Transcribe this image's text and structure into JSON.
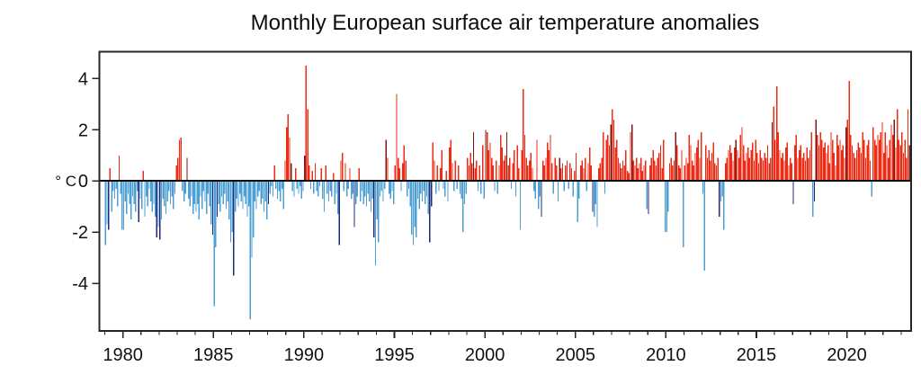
{
  "page": {
    "background": "#ffffff"
  },
  "chart_data": {
    "type": "bar",
    "title": "Monthly European surface air temperature anomalies",
    "ylabel": "° C",
    "xlabel": "",
    "grid": false,
    "legend": "none",
    "start_year": 1979,
    "start_month": 1,
    "end_year": 2023,
    "end_month": 6,
    "x_major_ticks": [
      1980,
      1985,
      1990,
      1995,
      2000,
      2005,
      2010,
      2015,
      2020
    ],
    "x_major_tick_labels": [
      "1980",
      "1985",
      "1990",
      "1995",
      "2000",
      "2005",
      "2010",
      "2015",
      "2020"
    ],
    "x_minor_tick_every_years": 1,
    "x_range_years": [
      1978.7,
      2023.55
    ],
    "y_ticks": [
      4,
      2,
      0,
      -2,
      -4
    ],
    "y_tick_labels": [
      "4",
      "2",
      "0",
      "-2",
      "-4"
    ],
    "ylim": [
      -5.86,
      5.05
    ],
    "colors": {
      "positive": "#ee2b14",
      "positive_dark": "#7c1a12",
      "negative": "#4e9fd4",
      "negative_dark": "#1f2a7b",
      "axis": "#262626",
      "zero_line": "#0a0a0a",
      "text": "#111111"
    },
    "values": [
      -2.5,
      -1.7,
      -1.9,
      0.5,
      -1.2,
      -0.4,
      -0.7,
      -0.3,
      -1.0,
      1.0,
      -0.5,
      -1.9,
      -1.9,
      -0.8,
      -1.3,
      -0.5,
      -0.9,
      -1.5,
      -0.6,
      -0.9,
      -1.2,
      -0.4,
      -1.6,
      -0.7,
      -1.1,
      0.4,
      -1.4,
      -0.6,
      -1.0,
      -0.3,
      -0.8,
      -1.2,
      -0.9,
      -1.4,
      -2.2,
      -1.8,
      -2.3,
      -1.5,
      -0.7,
      -1.0,
      -1.3,
      -0.8,
      -0.4,
      -0.9,
      -0.6,
      -1.1,
      -0.5,
      0.6,
      0.9,
      1.6,
      1.7,
      -0.4,
      -0.8,
      -0.5,
      0.9,
      -0.7,
      -1.0,
      -0.6,
      -1.3,
      -0.9,
      -1.2,
      -0.9,
      -1.5,
      -0.6,
      -1.1,
      -0.4,
      -0.8,
      -1.3,
      -0.5,
      -1.0,
      -1.7,
      -2.1,
      -4.9,
      -2.6,
      -1.4,
      -0.9,
      -1.2,
      -0.6,
      -0.9,
      -0.5,
      -1.1,
      -0.8,
      -1.5,
      -2.4,
      -2.0,
      -3.7,
      -1.2,
      -0.7,
      -1.0,
      -0.5,
      -0.8,
      -1.1,
      -0.6,
      -0.9,
      -1.4,
      -1.0,
      -5.4,
      -3.0,
      -2.2,
      -0.8,
      -1.1,
      -0.6,
      -0.4,
      -0.9,
      -0.7,
      -1.2,
      -0.8,
      -1.5,
      -0.9,
      -0.5,
      -0.2,
      -0.6,
      0.6,
      -0.3,
      -0.7,
      -0.4,
      -0.8,
      -0.3,
      -1.1,
      0.8,
      2.1,
      2.6,
      1.7,
      0.7,
      -0.4,
      -0.6,
      0.5,
      -0.3,
      -0.5,
      -0.2,
      -0.7,
      -0.4,
      1.0,
      4.5,
      2.8,
      0.6,
      -0.3,
      0.4,
      -0.5,
      0.7,
      -0.4,
      -0.6,
      -0.2,
      0.5,
      -0.7,
      -1.2,
      0.6,
      -0.5,
      -0.8,
      -0.4,
      -0.6,
      0.3,
      -0.9,
      -0.5,
      -1.3,
      -2.5,
      0.8,
      1.1,
      -0.4,
      0.7,
      -0.6,
      -0.3,
      0.5,
      -0.7,
      -0.5,
      -1.8,
      -0.9,
      -0.6,
      0.5,
      -0.8,
      -0.4,
      -0.9,
      -0.6,
      -1.0,
      -0.5,
      -0.8,
      -1.2,
      -0.7,
      -2.2,
      -3.3,
      -1.5,
      -2.4,
      -0.6,
      -0.4,
      -0.8,
      -0.3,
      1.6,
      0.9,
      -0.5,
      -0.7,
      -0.4,
      -0.9,
      0.6,
      3.4,
      0.9,
      0.5,
      -0.4,
      0.7,
      1.4,
      0.8,
      -0.6,
      -0.3,
      -1.0,
      -2.1,
      -2.5,
      -1.8,
      -2.2,
      -0.7,
      -1.1,
      -0.5,
      -0.8,
      -0.4,
      -0.9,
      -0.6,
      -1.3,
      -2.4,
      -1.0,
      1.5,
      0.8,
      -0.5,
      0.6,
      -0.4,
      0.5,
      1.2,
      -0.3,
      -0.6,
      0.4,
      -0.8,
      1.3,
      1.6,
      0.7,
      -0.4,
      0.8,
      -0.3,
      0.6,
      -0.5,
      -0.7,
      -2.0,
      -0.9,
      -0.5,
      0.9,
      0.6,
      1.1,
      0.7,
      1.9,
      0.5,
      0.8,
      -0.4,
      0.6,
      -0.5,
      1.4,
      -0.7,
      2.0,
      1.9,
      1.2,
      1.5,
      0.9,
      0.6,
      -0.4,
      0.8,
      -0.5,
      0.6,
      1.8,
      1.3,
      0.8,
      1.0,
      1.9,
      0.6,
      0.9,
      -0.3,
      0.7,
      1.2,
      -0.6,
      1.4,
      0.5,
      -1.9,
      1.2,
      3.6,
      1.8,
      0.9,
      0.6,
      0.8,
      1.1,
      0.5,
      -0.4,
      -0.7,
      1.6,
      -1.1,
      -0.6,
      -1.4,
      0.8,
      0.6,
      0.9,
      1.5,
      1.2,
      1.8,
      0.7,
      -0.5,
      0.9,
      0.6,
      -0.8,
      0.9,
      0.5,
      0.7,
      -0.4,
      0.6,
      0.8,
      -0.3,
      0.7,
      0.5,
      -0.6,
      0.4,
      1.1,
      -1.6,
      -0.7,
      0.6,
      0.8,
      0.5,
      0.9,
      -0.4,
      0.7,
      1.3,
      0.6,
      -1.2,
      -1.4,
      -0.9,
      -1.8,
      0.5,
      0.7,
      0.9,
      1.9,
      -0.5,
      1.6,
      1.8,
      1.4,
      2.2,
      2.8,
      2.4,
      1.3,
      1.6,
      0.9,
      0.7,
      0.5,
      0.8,
      0.6,
      1.2,
      0.4,
      0.3,
      1.9,
      2.2,
      0.8,
      0.6,
      0.9,
      0.5,
      0.7,
      0.9,
      0.4,
      0.6,
      0.8,
      -1.1,
      -1.3,
      0.6,
      0.9,
      1.2,
      0.8,
      0.6,
      0.9,
      1.1,
      1.4,
      0.5,
      1.6,
      -2.0,
      -2.0,
      -1.2,
      0.7,
      0.9,
      0.6,
      0.8,
      1.9,
      1.4,
      0.6,
      0.5,
      1.2,
      -2.6,
      0.6,
      0.9,
      0.7,
      1.8,
      1.4,
      0.8,
      0.6,
      1.1,
      1.3,
      1.6,
      0.9,
      1.9,
      -0.5,
      -3.5,
      1.4,
      0.9,
      1.2,
      0.8,
      1.1,
      1.5,
      0.7,
      0.6,
      0.9,
      -1.4,
      -0.8,
      -0.6,
      -1.9,
      0.7,
      0.9,
      1.2,
      1.4,
      1.1,
      0.8,
      1.3,
      1.6,
      1.2,
      0.9,
      1.8,
      2.1,
      1.4,
      0.8,
      1.1,
      1.3,
      0.9,
      1.2,
      1.5,
      0.8,
      1.6,
      1.1,
      0.7,
      1.2,
      0.9,
      0.8,
      1.1,
      0.9,
      1.4,
      0.7,
      0.9,
      2.3,
      2.9,
      1.6,
      3.7,
      1.9,
      1.2,
      0.9,
      1.1,
      0.8,
      1.3,
      1.5,
      0.6,
      0.9,
      0.7,
      -0.9,
      1.4,
      1.8,
      0.9,
      1.2,
      1.4,
      0.9,
      1.1,
      0.8,
      1.3,
      0.9,
      1.2,
      1.9,
      -1.4,
      -0.8,
      2.4,
      1.8,
      1.4,
      1.9,
      1.6,
      1.3,
      1.5,
      1.1,
      1.4,
      0.7,
      1.9,
      1.6,
      1.1,
      0.6,
      1.8,
      1.4,
      1.6,
      1.2,
      1.4,
      0.9,
      2.1,
      2.4,
      3.9,
      1.8,
      1.4,
      1.1,
      0.9,
      1.2,
      1.5,
      1.3,
      1.1,
      1.9,
      1.6,
      0.9,
      1.4,
      1.6,
      0.8,
      -0.6,
      2.1,
      1.6,
      1.4,
      1.8,
      1.6,
      1.9,
      2.3,
      1.1,
      1.9,
      1.4,
      0.9,
      1.6,
      2.2,
      1.8,
      2.4,
      1.3,
      2.8,
      1.6,
      1.4,
      1.9,
      1.1,
      1.6,
      0.9,
      2.8,
      1.4
    ],
    "dark_negative_indices": [
      2,
      22,
      34,
      36,
      71,
      74,
      85,
      108,
      155,
      165,
      178,
      215,
      216,
      289,
      323,
      360,
      407,
      456,
      470
    ],
    "dark_positive_indices": [
      54,
      123,
      132,
      186,
      244,
      252,
      266,
      301,
      335,
      349,
      378,
      418,
      442,
      471,
      491,
      523,
      533
    ]
  }
}
